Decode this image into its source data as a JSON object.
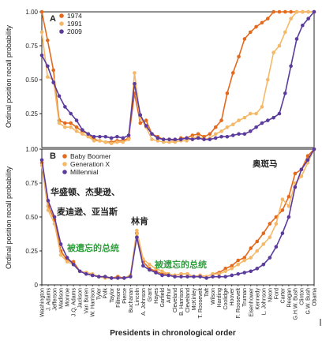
{
  "chart_data": [
    {
      "type": "line",
      "panel_label": "A",
      "ylabel": "Ordinal position recall probability",
      "ylim": [
        0,
        1.0
      ],
      "yticks": [
        "0",
        "0.25",
        "0.50",
        "0.75",
        "1.00"
      ],
      "legend": {
        "placement": "top-left"
      },
      "series": [
        {
          "name": "1974",
          "color": "#e36a1d",
          "values": [
            1.0,
            0.79,
            0.57,
            0.2,
            0.18,
            0.18,
            0.15,
            0.12,
            0.1,
            0.06,
            0.05,
            0.04,
            0.04,
            0.05,
            0.05,
            0.07,
            0.4,
            0.18,
            0.2,
            0.1,
            0.08,
            0.06,
            0.06,
            0.05,
            0.07,
            0.07,
            0.09,
            0.1,
            0.08,
            0.1,
            0.15,
            0.2,
            0.4,
            0.55,
            0.67,
            0.8,
            0.85,
            0.89,
            0.92,
            0.95,
            1.0,
            1.0,
            1.0,
            1.0,
            1.0,
            1.0,
            1.0,
            1.0
          ]
        },
        {
          "name": "1991",
          "color": "#f4b968",
          "values": [
            0.85,
            0.52,
            0.5,
            0.18,
            0.15,
            0.15,
            0.12,
            0.1,
            0.08,
            0.05,
            0.05,
            0.04,
            0.03,
            0.04,
            0.04,
            0.06,
            0.55,
            0.22,
            0.15,
            0.06,
            0.05,
            0.04,
            0.04,
            0.04,
            0.05,
            0.05,
            0.07,
            0.08,
            0.06,
            0.07,
            0.1,
            0.12,
            0.15,
            0.17,
            0.2,
            0.22,
            0.25,
            0.25,
            0.3,
            0.5,
            0.7,
            0.75,
            0.85,
            0.95,
            1.0,
            1.0,
            1.0,
            1.0
          ]
        },
        {
          "name": "2009",
          "color": "#5b3b9c",
          "values": [
            0.68,
            0.6,
            0.48,
            0.38,
            0.3,
            0.25,
            0.2,
            0.13,
            0.1,
            0.08,
            0.08,
            0.08,
            0.07,
            0.08,
            0.07,
            0.09,
            0.47,
            0.24,
            0.16,
            0.1,
            0.07,
            0.06,
            0.06,
            0.06,
            0.06,
            0.07,
            0.06,
            0.07,
            0.06,
            0.06,
            0.07,
            0.08,
            0.08,
            0.09,
            0.1,
            0.1,
            0.12,
            0.15,
            0.18,
            0.2,
            0.22,
            0.25,
            0.4,
            0.6,
            0.8,
            0.9,
            0.95,
            1.0
          ]
        }
      ]
    },
    {
      "type": "line",
      "panel_label": "B",
      "ylabel": "Ordinal position recall probability",
      "xlabel": "Presidents in chronological order",
      "ylim": [
        0,
        1.0
      ],
      "yticks": [
        "0",
        "0.25",
        "0.50",
        "0.75",
        "1.00"
      ],
      "categories": [
        "Washington",
        "J. Adams",
        "Jefferson",
        "Madison",
        "Monroe",
        "J.Q. Adams",
        "Jackson",
        "Van Buren",
        "W. Harrison",
        "Tyler",
        "Polk",
        "Taylor",
        "Fillmore",
        "Pierce",
        "Buchanan",
        "Lincoln",
        "A. Johnson",
        "Grant",
        "Hayes",
        "Garfield",
        "Arthur",
        "Cleveland",
        "B. Harrison",
        "Cleveland",
        "McKinley",
        "T. Roosevelt",
        "Taft",
        "Wilson",
        "Harding",
        "Coolidge",
        "Hoover",
        "F. Roosevelt",
        "Truman",
        "Eisenhower",
        "Kennedy",
        "L. Johnson",
        "Nixon",
        "Ford",
        "Carter",
        "Reagan",
        "G.H.W. Bush",
        "Clinton",
        "G.W. Bush",
        "Obama"
      ],
      "legend": {
        "placement": "top-left"
      },
      "series": [
        {
          "name": "Baby Boomer",
          "color": "#e36a1d",
          "values": [
            0.9,
            0.58,
            0.48,
            0.25,
            0.18,
            0.17,
            0.1,
            0.09,
            0.07,
            0.06,
            0.06,
            0.05,
            0.06,
            0.05,
            0.07,
            0.38,
            0.17,
            0.12,
            0.1,
            0.08,
            0.08,
            0.07,
            0.08,
            0.08,
            0.06,
            0.07,
            0.06,
            0.08,
            0.09,
            0.12,
            0.14,
            0.18,
            0.2,
            0.27,
            0.32,
            0.38,
            0.45,
            0.5,
            0.55,
            0.65,
            0.82,
            0.85,
            0.95,
            1.0
          ]
        },
        {
          "name": "Generation X",
          "color": "#f4b968",
          "values": [
            0.88,
            0.55,
            0.45,
            0.22,
            0.17,
            0.15,
            0.1,
            0.09,
            0.08,
            0.06,
            0.05,
            0.05,
            0.05,
            0.05,
            0.07,
            0.4,
            0.19,
            0.15,
            0.12,
            0.1,
            0.08,
            0.07,
            0.08,
            0.08,
            0.06,
            0.07,
            0.06,
            0.08,
            0.08,
            0.1,
            0.12,
            0.15,
            0.18,
            0.2,
            0.25,
            0.3,
            0.35,
            0.45,
            0.63,
            0.58,
            0.75,
            0.8,
            0.9,
            1.0
          ]
        },
        {
          "name": "Millennial",
          "color": "#5b3b9c",
          "values": [
            0.92,
            0.62,
            0.5,
            0.3,
            0.2,
            0.15,
            0.1,
            0.08,
            0.07,
            0.06,
            0.06,
            0.05,
            0.05,
            0.05,
            0.06,
            0.35,
            0.14,
            0.11,
            0.09,
            0.07,
            0.07,
            0.06,
            0.06,
            0.06,
            0.06,
            0.06,
            0.05,
            0.06,
            0.06,
            0.06,
            0.07,
            0.08,
            0.09,
            0.1,
            0.12,
            0.15,
            0.2,
            0.28,
            0.38,
            0.5,
            0.72,
            0.85,
            0.92,
            1.0
          ]
        }
      ],
      "annotations": [
        "奥斑马",
        "华盛顿、杰斐逊、",
        "麦迪逊、亚当斯",
        "林肯",
        "被遗忘的总统",
        "被遗忘的总统"
      ]
    }
  ]
}
